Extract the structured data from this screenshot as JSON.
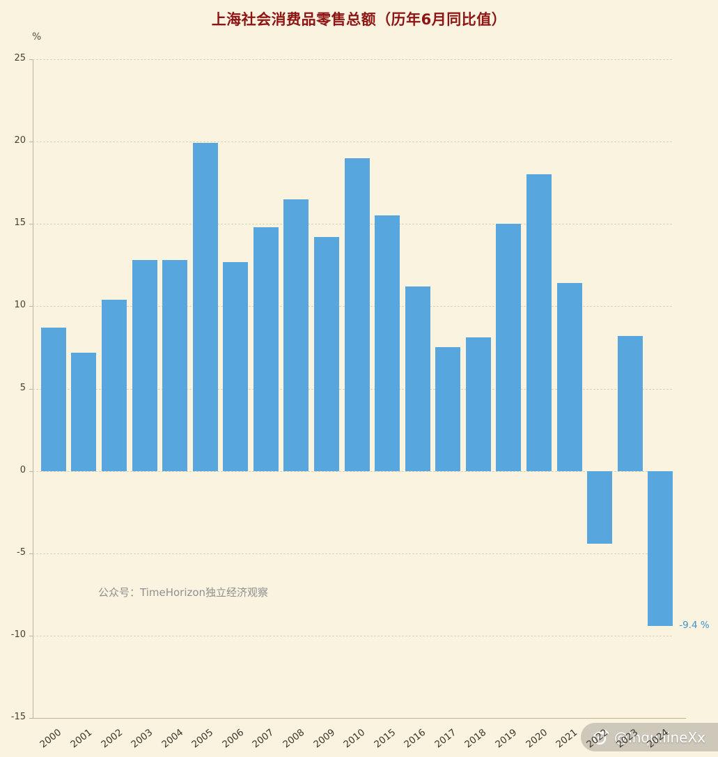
{
  "chart_data": {
    "type": "bar",
    "title": "上海社会消费品零售总额（历年6月同比值）",
    "xlabel": "",
    "ylabel": "%",
    "ylim": [
      -15,
      25
    ],
    "ytick_interval": 5,
    "grid": true,
    "legend": "none",
    "categories": [
      "2000",
      "2001",
      "2002",
      "2003",
      "2004",
      "2005",
      "2006",
      "2007",
      "2008",
      "2009",
      "2010",
      "2015",
      "2016",
      "2017",
      "2018",
      "2019",
      "2020",
      "2021",
      "2022",
      "2023",
      "2024"
    ],
    "values": [
      8.7,
      7.2,
      10.4,
      12.8,
      12.8,
      19.9,
      12.7,
      14.8,
      16.5,
      14.2,
      19.0,
      15.5,
      11.2,
      7.5,
      8.1,
      15.0,
      18.0,
      11.4,
      -4.4,
      8.2,
      -9.4
    ],
    "annotation": {
      "category": "2024",
      "label": "-9.4 %"
    }
  },
  "colors": {
    "background": "#faf3e0",
    "title": "#8e1414",
    "bar": "#57a7de",
    "annotation": "#3e92cc"
  },
  "watermark": {
    "text": "公众号：TimeHorizon独立经济观察",
    "handle": "@InquilineXx"
  }
}
